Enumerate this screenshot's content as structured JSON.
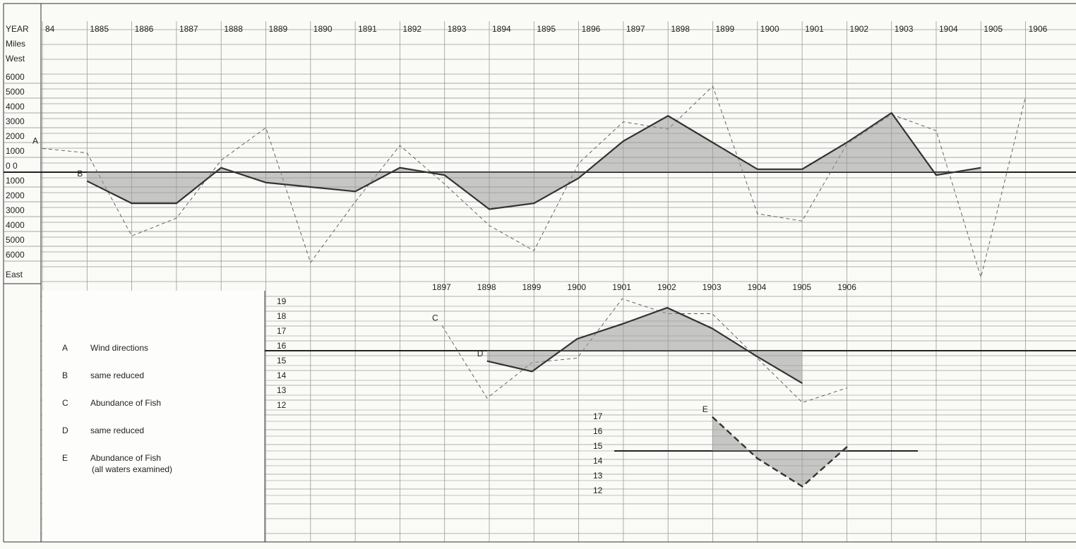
{
  "chart_data": [
    {
      "type": "line",
      "x_label": "YEAR",
      "y_units": "Miles",
      "y_top_label": "West",
      "y_bottom_label": "East",
      "categories": [
        "84",
        "1885",
        "1886",
        "1887",
        "1888",
        "1889",
        "1890",
        "1891",
        "1892",
        "1893",
        "1894",
        "1895",
        "1896",
        "1897",
        "1898",
        "1899",
        "1900",
        "1901",
        "1902",
        "1903",
        "1904",
        "1905",
        "1906"
      ],
      "ylim": [
        -8000,
        8000
      ],
      "yticks": [
        6000,
        5000,
        4000,
        3000,
        2000,
        1000,
        {
          "value": 0,
          "label": "0 0"
        },
        {
          "value": -1000,
          "label": "1000"
        },
        {
          "value": -2000,
          "label": "2000"
        },
        {
          "value": -3000,
          "label": "3000"
        },
        {
          "value": -4000,
          "label": "4000"
        },
        {
          "value": -5000,
          "label": "5000"
        },
        {
          "value": -6000,
          "label": "6000"
        }
      ],
      "baseline": 0,
      "series": [
        {
          "label": "A",
          "name": "Wind directions",
          "color": "#555555",
          "style": "dashed",
          "shaded": false,
          "values": [
            1600,
            1300,
            -4300,
            -3100,
            800,
            3000,
            -6100,
            -2000,
            1800,
            -800,
            -3600,
            -5300,
            600,
            3400,
            2900,
            5800,
            -2800,
            -3300,
            1900,
            3900,
            2800,
            -7100,
            5100
          ]
        },
        {
          "label": "B",
          "name": "same reduced",
          "color": "#333333",
          "style": "solid",
          "shaded": true,
          "values": [
            null,
            -600,
            -2100,
            -2100,
            300,
            -700,
            -1000,
            -1300,
            300,
            -200,
            -2500,
            -2100,
            -400,
            2100,
            3800,
            2000,
            200,
            200,
            2000,
            4000,
            -200,
            300,
            null
          ]
        }
      ]
    },
    {
      "type": "line",
      "categories": [
        "1897",
        "1898",
        "1899",
        "1900",
        "1901",
        "1902",
        "1903",
        "1904",
        "1905",
        "1906"
      ],
      "ylim": [
        11,
        20
      ],
      "yticks": [
        19,
        18,
        17,
        16,
        15,
        14,
        13,
        12
      ],
      "baseline": 16,
      "y2lim": [
        11,
        18
      ],
      "y2ticks": [
        17,
        16,
        15,
        14,
        13,
        12
      ],
      "y2baseline": 15,
      "series": [
        {
          "label": "C",
          "name": "Abundance of Fish",
          "color": "#555555",
          "style": "dashed",
          "shaded": false,
          "values": [
            17.7,
            12.8,
            15.2,
            15.5,
            19.5,
            18.5,
            18.5,
            15.5,
            12.5,
            13.5
          ]
        },
        {
          "label": "D",
          "name": "same reduced",
          "color": "#333333",
          "style": "solid",
          "shaded": true,
          "values": [
            null,
            15.3,
            14.6,
            16.8,
            17.8,
            18.9,
            17.5,
            15.6,
            13.8,
            null
          ]
        },
        {
          "label": "E",
          "name": "Abundance of Fish",
          "note": "(all waters examined)",
          "color": "#333333",
          "style": "bolddashed",
          "shaded": true,
          "axis": "y2",
          "values": [
            null,
            null,
            null,
            null,
            null,
            null,
            17.3,
            14.5,
            12.6,
            15.3
          ]
        }
      ]
    }
  ]
}
